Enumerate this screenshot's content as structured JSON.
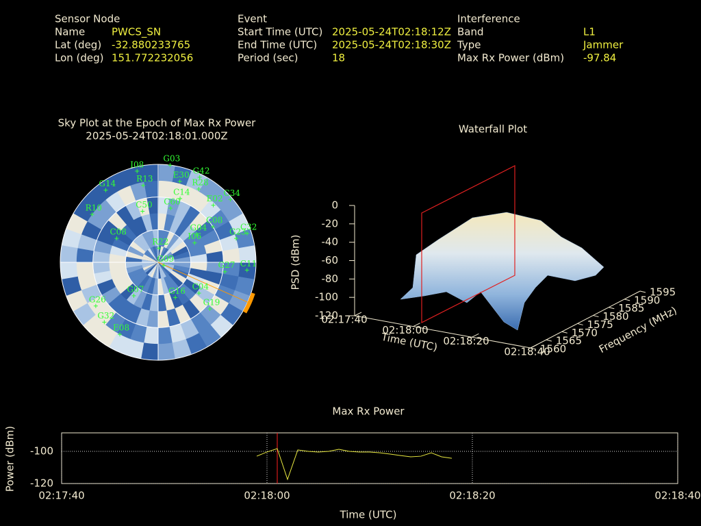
{
  "header": {
    "columns": [
      {
        "heading": "Sensor Node",
        "rows": [
          {
            "label": "Name",
            "value": "PWCS_SN"
          },
          {
            "label": "Lat (deg)",
            "value": -32.880233765
          },
          {
            "label": "Lon (deg)",
            "value": 151.772232056
          }
        ]
      },
      {
        "heading": "Event",
        "rows": [
          {
            "label": "Start Time (UTC)",
            "value": "2025-05-24T02:18:12Z"
          },
          {
            "label": "End Time (UTC)",
            "value": "2025-05-24T02:18:30Z"
          },
          {
            "label": "Period (sec)",
            "value": 18
          }
        ]
      },
      {
        "heading": "Interference",
        "rows": [
          {
            "label": "Band",
            "value": "L1"
          },
          {
            "label": "Type",
            "value": "Jammer"
          },
          {
            "label": "Max Rx Power (dBm)",
            "value": -97.84
          }
        ]
      }
    ]
  },
  "chart_data": [
    {
      "type": "sky",
      "title": "Sky Plot at the Epoch of Max Rx Power",
      "subtitle": "2025-05-24T02:18:01.000Z",
      "marker_color": "#33ff33",
      "interference_color": "#ff9900",
      "interference_azimuth": 114,
      "satellites": {
        "names": [
          "G03",
          "I08",
          "G42",
          "E30",
          "R28",
          "R13",
          "G14",
          "E02",
          "C34",
          "C14",
          "C60",
          "C50",
          "R10",
          "C08",
          "C32",
          "G04",
          "I06",
          "C08",
          "G23",
          "R22",
          "G09",
          "G27",
          "C11",
          "G07",
          "G16",
          "C04",
          "G19",
          "G26",
          "G32",
          "E08"
        ],
        "azimuth": [
          7,
          347,
          26,
          15,
          29,
          349,
          324,
          44,
          49,
          19,
          13,
          343,
          306,
          57,
          72,
          54,
          62,
          300,
          73,
          3,
          119,
          98,
          95,
          216,
          154,
          127,
          132,
          235,
          222,
          208
        ],
        "elevation": [
          0,
          4,
          3,
          13,
          13,
          18,
          8,
          17,
          2,
          28,
          39,
          41,
          15,
          30,
          4,
          46,
          52,
          46,
          15,
          77,
          84,
          28,
          8,
          52,
          54,
          43,
          26,
          20,
          16,
          15
        ]
      }
    },
    {
      "type": "waterfall",
      "title": "Waterfall Plot",
      "ylabel": "PSD (dBm)",
      "xlabel": "Time (UTC)",
      "zlabel": "Frequency (MHz)",
      "ylim": [
        -120,
        0
      ],
      "yticks": [
        0,
        -20,
        -40,
        -60,
        -80,
        -100,
        -120
      ],
      "xticks": [
        "02:17:40",
        "02:18:00",
        "02:18:20",
        "02:18:40"
      ],
      "zlim": [
        1560,
        1595
      ],
      "zticks": [
        1560,
        1565,
        1570,
        1575,
        1580,
        1585,
        1590,
        1595
      ]
    },
    {
      "type": "line",
      "title": "Max Rx Power",
      "xlabel": "Time (UTC)",
      "ylabel": "Power (dBm)",
      "xlim": [
        "02:17:40",
        "02:18:40"
      ],
      "xticks": [
        "02:17:40",
        "02:18:00",
        "02:18:20",
        "02:18:40"
      ],
      "ylim": [
        -120,
        -88.5
      ],
      "yticks": [
        -100,
        -120
      ],
      "grid": true,
      "marker_x": "02:18:01",
      "marker_color": "#ff2020",
      "x": [
        "02:17:59",
        "02:18:00",
        "02:18:01",
        "02:18:02",
        "02:18:03",
        "02:18:04",
        "02:18:05",
        "02:18:06",
        "02:18:07",
        "02:18:08",
        "02:18:09",
        "02:18:10",
        "02:18:11",
        "02:18:12",
        "02:18:13",
        "02:18:14",
        "02:18:15",
        "02:18:16",
        "02:18:17",
        "02:18:18"
      ],
      "series": [
        {
          "color": "#e8e840",
          "values": [
            -103,
            -100.4,
            -98.3,
            -117.4,
            -99.1,
            -100,
            -100.4,
            -100,
            -98.7,
            -100,
            -100.4,
            -100.4,
            -100.9,
            -101.7,
            -102.6,
            -103.4,
            -103,
            -100.9,
            -103.4,
            -104.3
          ]
        }
      ]
    }
  ]
}
